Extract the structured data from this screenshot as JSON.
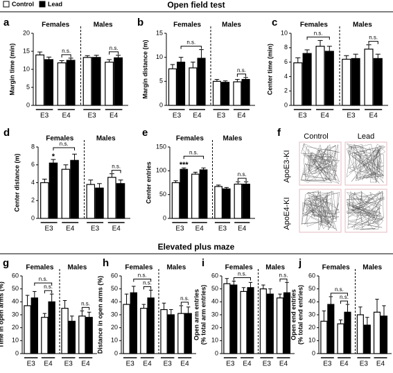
{
  "legend": [
    {
      "name": "Control",
      "color": "#ffffff"
    },
    {
      "name": "Lead",
      "color": "#000000"
    }
  ],
  "sections": [
    "Open field test",
    "Elevated plus maze"
  ],
  "chart_data": [
    {
      "type": "bar",
      "panel": "a",
      "ylabel": "Margin time (min)",
      "ylim": [
        0,
        20
      ],
      "yticks": [
        0,
        5,
        10,
        15,
        20
      ],
      "groups": [
        "Females",
        "Males"
      ],
      "subgroups": [
        "E3",
        "E4",
        "E3",
        "E4"
      ],
      "series": [
        {
          "values": [
            14,
            11.8,
            13.3,
            12
          ],
          "errors": [
            0.8,
            0.6,
            0.5,
            0.7
          ]
        },
        {
          "values": [
            12.7,
            12.5,
            13.3,
            13.2
          ],
          "errors": [
            0.7,
            0.6,
            0.6,
            0.7
          ]
        }
      ],
      "annotations": [
        {
          "text": "n.s.",
          "span": [
            2,
            3
          ]
        },
        {
          "text": "n.s.",
          "span": [
            6,
            7
          ]
        }
      ]
    },
    {
      "type": "bar",
      "panel": "b",
      "ylabel": "Margin distance (m)",
      "ylim": [
        0,
        15
      ],
      "yticks": [
        0,
        5,
        10,
        15
      ],
      "groups": [
        "Females",
        "Males"
      ],
      "subgroups": [
        "E3",
        "E4",
        "E3",
        "E4"
      ],
      "series": [
        {
          "values": [
            7.6,
            7.8,
            5,
            4.9
          ],
          "errors": [
            0.9,
            1.2,
            0.4,
            0.5
          ]
        },
        {
          "values": [
            9,
            9.8,
            4.8,
            5.4
          ],
          "errors": [
            1,
            1.8,
            0.3,
            0.4
          ]
        }
      ],
      "annotations": [
        {
          "text": "n.s.",
          "span": [
            1,
            3
          ]
        },
        {
          "text": "n.s.",
          "span": [
            6,
            7
          ]
        }
      ]
    },
    {
      "type": "bar",
      "panel": "c",
      "ylabel": "Center time (min)",
      "ylim": [
        0,
        10
      ],
      "yticks": [
        0,
        2,
        4,
        6,
        8,
        10
      ],
      "groups": [
        "Females",
        "Males"
      ],
      "subgroups": [
        "E3",
        "E4",
        "E3",
        "E4"
      ],
      "series": [
        {
          "values": [
            5.9,
            8.2,
            6.4,
            7.8
          ],
          "errors": [
            0.7,
            0.8,
            0.5,
            0.6
          ]
        },
        {
          "values": [
            7.2,
            7.5,
            6.5,
            6.5
          ],
          "errors": [
            0.5,
            0.7,
            0.6,
            0.6
          ]
        }
      ],
      "annotations": [
        {
          "text": "n.s.",
          "span": [
            1,
            3
          ]
        },
        {
          "text": "n.s.",
          "span": [
            6,
            7
          ]
        }
      ]
    },
    {
      "type": "bar",
      "panel": "d",
      "ylabel": "Center distance (m)",
      "ylim": [
        0,
        8
      ],
      "yticks": [
        0,
        2,
        4,
        6,
        8
      ],
      "groups": [
        "Females",
        "Males"
      ],
      "subgroups": [
        "E3",
        "E4",
        "E3",
        "E4"
      ],
      "series": [
        {
          "values": [
            4,
            5.5,
            3.8,
            4.6
          ],
          "errors": [
            0.4,
            0.5,
            0.5,
            0.4
          ]
        },
        {
          "values": [
            6.2,
            6.5,
            3.4,
            3.9
          ],
          "errors": [
            0.4,
            0.7,
            0.5,
            0.4
          ]
        }
      ],
      "annotations": [
        {
          "text": "*",
          "span": [
            1,
            1
          ]
        },
        {
          "text": "n.s.",
          "span": [
            1,
            3
          ]
        },
        {
          "text": "n.s.",
          "span": [
            6,
            7
          ]
        }
      ]
    },
    {
      "type": "bar",
      "panel": "e",
      "ylabel": "Center entries",
      "ylim": [
        0,
        150
      ],
      "yticks": [
        0,
        50,
        100,
        150
      ],
      "groups": [
        "Females",
        "Males"
      ],
      "subgroups": [
        "E3",
        "E4",
        "E3",
        "E4"
      ],
      "series": [
        {
          "values": [
            75,
            93,
            67,
            72
          ],
          "errors": [
            4,
            4,
            3,
            5
          ]
        },
        {
          "values": [
            103,
            102,
            62,
            72
          ],
          "errors": [
            3,
            4,
            3,
            5
          ]
        }
      ],
      "annotations": [
        {
          "text": "***",
          "span": [
            1,
            1
          ]
        },
        {
          "text": "n.s.",
          "span": [
            1,
            3
          ]
        },
        {
          "text": "n.s.",
          "span": [
            6,
            7
          ]
        }
      ]
    },
    {
      "type": "bar",
      "panel": "g",
      "ylabel": "Time in open arms (%)",
      "ylim": [
        0,
        60
      ],
      "yticks": [
        0,
        10,
        20,
        30,
        40,
        50,
        60
      ],
      "groups": [
        "Females",
        "Males"
      ],
      "subgroups": [
        "E3",
        "E4",
        "E3",
        "E4"
      ],
      "series": [
        {
          "values": [
            37,
            28,
            35,
            29
          ],
          "errors": [
            8,
            3,
            6,
            4
          ]
        },
        {
          "values": [
            43,
            40,
            25,
            28
          ],
          "errors": [
            5,
            6,
            4,
            4
          ]
        }
      ],
      "annotations": [
        {
          "text": "n.s.",
          "span": [
            2,
            3
          ]
        },
        {
          "text": "n.s.",
          "span": [
            1,
            3
          ]
        },
        {
          "text": "n.s.",
          "span": [
            6,
            7
          ]
        }
      ]
    },
    {
      "type": "bar",
      "panel": "h",
      "ylabel": "Distance in open arms (%)",
      "ylim": [
        0,
        60
      ],
      "yticks": [
        0,
        10,
        20,
        30,
        40,
        50,
        60
      ],
      "groups": [
        "Females",
        "Males"
      ],
      "subgroups": [
        "E3",
        "E4",
        "E3",
        "E4"
      ],
      "series": [
        {
          "values": [
            38,
            35,
            34,
            31
          ],
          "errors": [
            8,
            3,
            5,
            6
          ]
        },
        {
          "values": [
            47,
            43,
            30,
            31
          ],
          "errors": [
            5,
            6,
            4,
            5
          ]
        }
      ],
      "annotations": [
        {
          "text": "n.s.",
          "span": [
            2,
            3
          ]
        },
        {
          "text": "n.s.",
          "span": [
            1,
            3
          ]
        },
        {
          "text": "n.s.",
          "span": [
            6,
            7
          ]
        }
      ]
    },
    {
      "type": "bar",
      "panel": "i",
      "ylabel": [
        "Open arm entries",
        "(% total arm entries)"
      ],
      "ylim": [
        0,
        60
      ],
      "yticks": [
        0,
        10,
        20,
        30,
        40,
        50,
        60
      ],
      "groups": [
        "Females",
        "Males"
      ],
      "subgroups": [
        "E3",
        "E4",
        "E3",
        "E4"
      ],
      "series": [
        {
          "values": [
            54,
            48,
            50,
            43
          ],
          "errors": [
            4,
            3,
            3,
            3
          ]
        },
        {
          "values": [
            53,
            51,
            46,
            47
          ],
          "errors": [
            3,
            4,
            4,
            8
          ]
        }
      ],
      "annotations": [
        {
          "text": "n.s.",
          "span": [
            1,
            3
          ]
        },
        {
          "text": "n.s.",
          "span": [
            6,
            7
          ]
        }
      ]
    },
    {
      "type": "bar",
      "panel": "j",
      "ylabel": [
        "Open end entries",
        "(% total end entries)"
      ],
      "ylim": [
        0,
        60
      ],
      "yticks": [
        0,
        10,
        20,
        30,
        40,
        50,
        60
      ],
      "groups": [
        "Females",
        "Males"
      ],
      "subgroups": [
        "E3",
        "E4",
        "E3",
        "E4"
      ],
      "series": [
        {
          "values": [
            25,
            23,
            30,
            32
          ],
          "errors": [
            8,
            3,
            6,
            10
          ]
        },
        {
          "values": [
            38,
            32,
            22,
            29
          ],
          "errors": [
            6,
            6,
            6,
            8
          ]
        }
      ],
      "annotations": [
        {
          "text": "n.s.",
          "span": [
            2,
            3
          ]
        },
        {
          "text": "n.s.",
          "span": [
            1,
            3
          ]
        }
      ]
    }
  ],
  "trajectory_panel": {
    "panel": "f",
    "columns": [
      "Control",
      "Lead"
    ],
    "rows": [
      "ApoE3-KI",
      "ApoE4-KI"
    ]
  }
}
